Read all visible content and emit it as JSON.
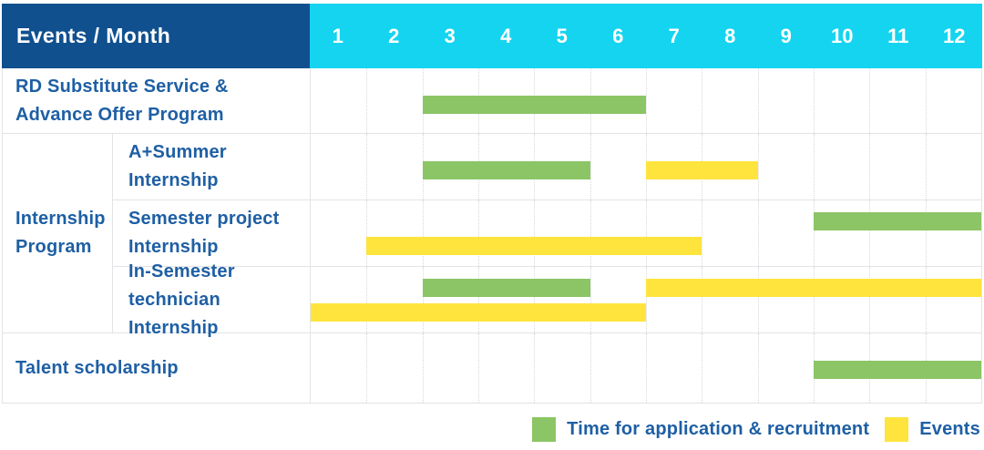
{
  "header": {
    "title": "Events / Month",
    "months": [
      "1",
      "2",
      "3",
      "4",
      "5",
      "6",
      "7",
      "8",
      "9",
      "10",
      "11",
      "12"
    ]
  },
  "chart_data": {
    "type": "gantt",
    "unit": "month",
    "x_range": [
      1,
      12
    ],
    "corner_label": "Events / Month",
    "month_labels": [
      "1",
      "2",
      "3",
      "4",
      "5",
      "6",
      "7",
      "8",
      "9",
      "10",
      "11",
      "12"
    ],
    "rows": [
      {
        "group": "",
        "label": "RD Substitute Service &\nAdvance Offer Program",
        "bars": [
          {
            "type": "application",
            "start_month": 3,
            "end_month": 6,
            "line": "single"
          }
        ]
      },
      {
        "group": "Internship\nProgram",
        "label": "A+Summer\nInternship",
        "bars": [
          {
            "type": "application",
            "start_month": 3,
            "end_month": 5,
            "line": "single"
          },
          {
            "type": "event",
            "start_month": 7,
            "end_month": 8,
            "line": "single"
          }
        ]
      },
      {
        "group": "Internship\nProgram",
        "label": "Semester project\nInternship",
        "bars": [
          {
            "type": "application",
            "start_month": 10,
            "end_month": 12,
            "line": "top"
          },
          {
            "type": "event",
            "start_month": 2,
            "end_month": 7,
            "line": "bottom"
          }
        ]
      },
      {
        "group": "Internship\nProgram",
        "label": "In-Semester\ntechnician Internship",
        "bars": [
          {
            "type": "application",
            "start_month": 3,
            "end_month": 5,
            "line": "top"
          },
          {
            "type": "event",
            "start_month": 7,
            "end_month": 12,
            "line": "top"
          },
          {
            "type": "event",
            "start_month": 1,
            "end_month": 6,
            "line": "bottom"
          }
        ]
      },
      {
        "group": "",
        "label": "Talent scholarship",
        "bars": [
          {
            "type": "application",
            "start_month": 10,
            "end_month": 12,
            "line": "single"
          }
        ]
      }
    ],
    "legend": [
      {
        "type": "application",
        "label": "Time for application & recruitment",
        "color": "#8BC565"
      },
      {
        "type": "event",
        "label": "Events",
        "color": "#FFE43E"
      }
    ]
  },
  "colors": {
    "header_navy": "#10508F",
    "header_cyan": "#15D4F0",
    "label_blue": "#1E5FA4",
    "grid_border": "#E4E4E8",
    "bar_green": "#8BC565",
    "bar_yellow": "#FFE43E"
  }
}
